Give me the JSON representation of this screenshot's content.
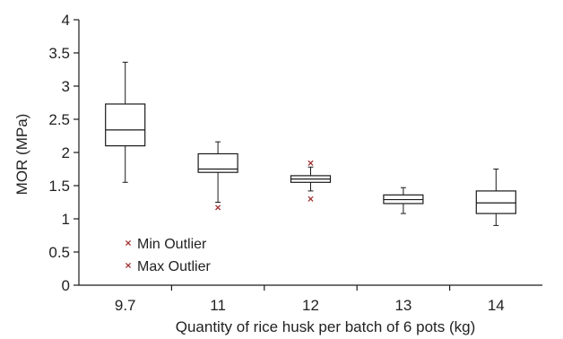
{
  "chart_data": {
    "type": "box",
    "xlabel": "Quantity of rice husk per batch of 6 pots (kg)",
    "ylabel": "MOR (MPa)",
    "ylim": [
      0,
      4
    ],
    "yticks": [
      "0",
      "0.5",
      "1",
      "1.5",
      "2",
      "2.5",
      "3",
      "3.5",
      "4"
    ],
    "categories": [
      "9.7",
      "11",
      "12",
      "13",
      "14"
    ],
    "boxes": [
      {
        "category": "9.7",
        "whisker_low": 1.55,
        "q1": 2.1,
        "median": 2.34,
        "q3": 2.73,
        "whisker_high": 3.36,
        "min_outliers": [],
        "max_outliers": []
      },
      {
        "category": "11",
        "whisker_low": 1.25,
        "q1": 1.7,
        "median": 1.75,
        "q3": 1.98,
        "whisker_high": 2.16,
        "min_outliers": [
          1.17
        ],
        "max_outliers": []
      },
      {
        "category": "12",
        "whisker_low": 1.42,
        "q1": 1.55,
        "median": 1.6,
        "q3": 1.65,
        "whisker_high": 1.78,
        "min_outliers": [
          1.3
        ],
        "max_outliers": [
          1.84
        ]
      },
      {
        "category": "13",
        "whisker_low": 1.08,
        "q1": 1.23,
        "median": 1.29,
        "q3": 1.36,
        "whisker_high": 1.47,
        "min_outliers": [],
        "max_outliers": []
      },
      {
        "category": "14",
        "whisker_low": 0.9,
        "q1": 1.08,
        "median": 1.24,
        "q3": 1.42,
        "whisker_high": 1.75,
        "min_outliers": [],
        "max_outliers": []
      }
    ],
    "legend": [
      {
        "label": "Min Outlier",
        "marker": "x"
      },
      {
        "label": "Max Outlier",
        "marker": "x"
      }
    ],
    "legend_position": "bottom-left",
    "grid": false,
    "colors": {
      "box": "#1a1a1a",
      "outlier": "#a03030"
    }
  }
}
